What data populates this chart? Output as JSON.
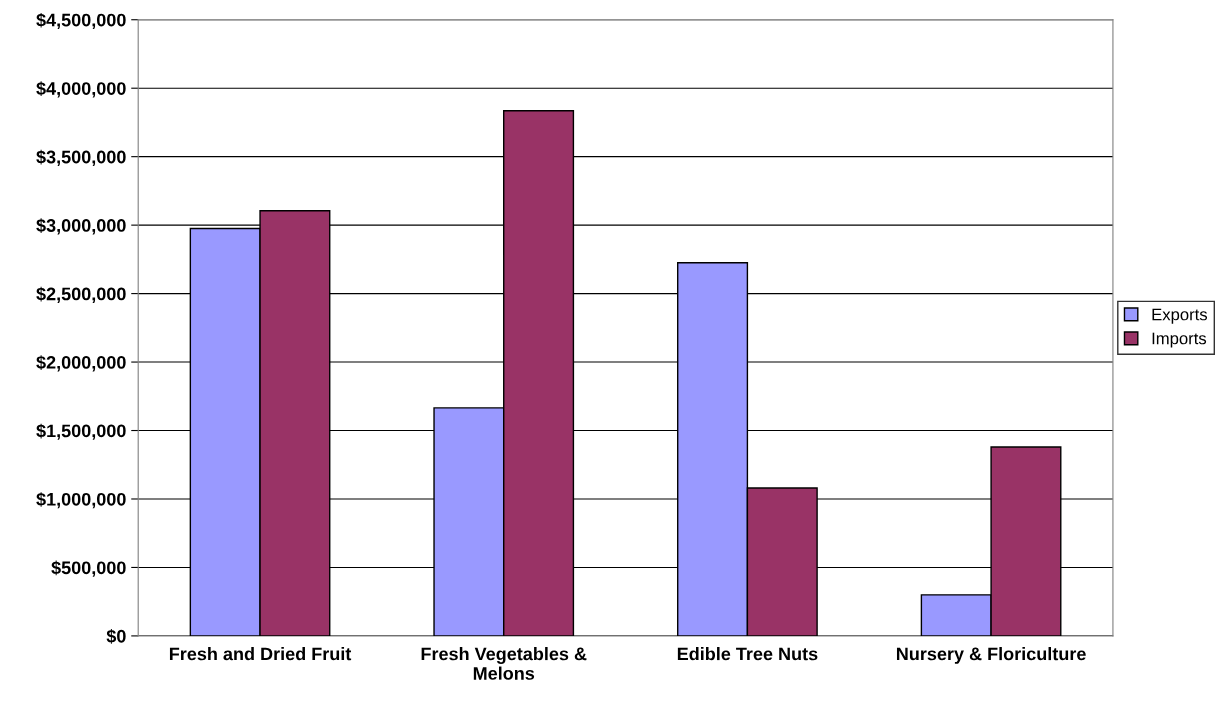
{
  "chart_data": {
    "type": "bar",
    "categories": [
      "Fresh and Dried Fruit",
      "Fresh Vegetables &\nMelons",
      "Edible Tree Nuts",
      "Nursery & Floriculture"
    ],
    "series": [
      {
        "name": "Exports",
        "color": "#9999ff",
        "values": [
          2975000,
          1665000,
          2725000,
          300000
        ]
      },
      {
        "name": "Imports",
        "color": "#993366",
        "values": [
          3105000,
          3835000,
          1080000,
          1380000
        ]
      }
    ],
    "ylim": [
      0,
      4500000
    ],
    "yticks": [
      {
        "value": 0,
        "label": "$0"
      },
      {
        "value": 500000,
        "label": "$500,000"
      },
      {
        "value": 1000000,
        "label": "$1,000,000"
      },
      {
        "value": 1500000,
        "label": "$1,500,000"
      },
      {
        "value": 2000000,
        "label": "$2,000,000"
      },
      {
        "value": 2500000,
        "label": "$2,500,000"
      },
      {
        "value": 3000000,
        "label": "$3,000,000"
      },
      {
        "value": 3500000,
        "label": "$3,500,000"
      },
      {
        "value": 4000000,
        "label": "$4,000,000"
      },
      {
        "value": 4500000,
        "label": "$4,500,000"
      }
    ],
    "grid": "y",
    "legend": "right"
  }
}
